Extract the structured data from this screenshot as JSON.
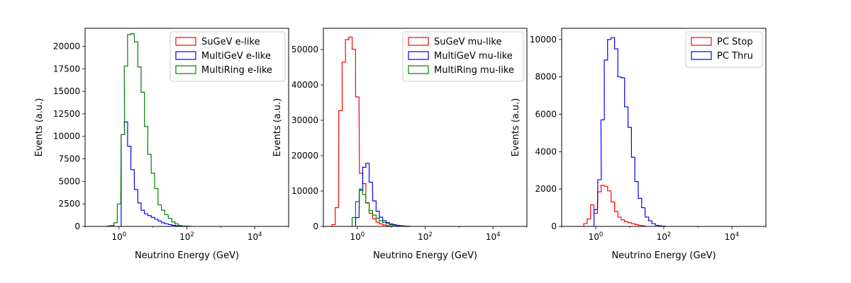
{
  "chart_data": [
    {
      "type": "step-histogram",
      "xlabel": "Neutrino Energy (GeV)",
      "ylabel": "Events (a.u.)",
      "xscale": "log",
      "xlim": [
        0.1,
        100000
      ],
      "ylim": [
        0,
        22000
      ],
      "x_ticks": [
        "10^0",
        "10^2",
        "10^4"
      ],
      "y_ticks": [
        0,
        2500,
        5000,
        7500,
        10000,
        12500,
        15000,
        17500,
        20000
      ],
      "legend_loc": "upper right",
      "series": [
        {
          "name": "SuGeV e-like",
          "color": "#ff0000",
          "points": []
        },
        {
          "name": "MultiGeV e-like",
          "color": "#0000ff",
          "points": [
            [
              1.3,
              10200
            ],
            [
              1.6,
              11600
            ],
            [
              2.0,
              8900
            ],
            [
              2.5,
              6300
            ],
            [
              3.2,
              4100
            ],
            [
              4.0,
              2600
            ],
            [
              5.0,
              1800
            ],
            [
              6.3,
              1400
            ],
            [
              7.9,
              1200
            ],
            [
              10,
              1000
            ],
            [
              12.6,
              800
            ],
            [
              15.8,
              600
            ],
            [
              20,
              400
            ],
            [
              25,
              300
            ],
            [
              32,
              200
            ],
            [
              40,
              120
            ],
            [
              50,
              80
            ],
            [
              63,
              50
            ],
            [
              79,
              30
            ],
            [
              100,
              20
            ],
            [
              126,
              10
            ]
          ]
        },
        {
          "name": "MultiRing e-like",
          "color": "#008000",
          "points": [
            [
              0.5,
              50
            ],
            [
              0.63,
              100
            ],
            [
              0.79,
              400
            ],
            [
              1.0,
              2500
            ],
            [
              1.3,
              10200
            ],
            [
              1.6,
              17800
            ],
            [
              2.0,
              21300
            ],
            [
              2.5,
              21400
            ],
            [
              3.2,
              20500
            ],
            [
              4.0,
              17700
            ],
            [
              5.0,
              14900
            ],
            [
              6.3,
              11100
            ],
            [
              7.9,
              8000
            ],
            [
              10,
              5900
            ],
            [
              12.6,
              4200
            ],
            [
              15.8,
              2400
            ],
            [
              20,
              1800
            ],
            [
              25,
              1300
            ],
            [
              32,
              900
            ],
            [
              40,
              500
            ],
            [
              50,
              300
            ],
            [
              63,
              100
            ],
            [
              79,
              50
            ],
            [
              100,
              20
            ]
          ]
        }
      ]
    },
    {
      "type": "step-histogram",
      "xlabel": "Neutrino Energy (GeV)",
      "ylabel": "Events (a.u.)",
      "xscale": "log",
      "xlim": [
        0.1,
        100000
      ],
      "ylim": [
        0,
        56000
      ],
      "x_ticks": [
        "10^0",
        "10^2",
        "10^4"
      ],
      "y_ticks": [
        0,
        10000,
        20000,
        30000,
        40000,
        50000
      ],
      "legend_loc": "upper right",
      "series": [
        {
          "name": "SuGeV mu-like",
          "color": "#ff0000",
          "points": [
            [
              0.2,
              500
            ],
            [
              0.25,
              5300
            ],
            [
              0.32,
              32700
            ],
            [
              0.4,
              46400
            ],
            [
              0.5,
              52800
            ],
            [
              0.63,
              53500
            ],
            [
              0.79,
              50100
            ],
            [
              1.0,
              36600
            ],
            [
              1.3,
              15000
            ],
            [
              1.6,
              12100
            ],
            [
              2.0,
              6700
            ],
            [
              2.5,
              3700
            ],
            [
              3.2,
              2100
            ],
            [
              4.0,
              1200
            ],
            [
              5.0,
              700
            ],
            [
              6.3,
              400
            ],
            [
              7.9,
              200
            ],
            [
              10,
              100
            ]
          ]
        },
        {
          "name": "MultiGeV mu-like",
          "color": "#0000ff",
          "points": [
            [
              1.0,
              2500
            ],
            [
              1.3,
              10200
            ],
            [
              1.6,
              16700
            ],
            [
              2.0,
              17800
            ],
            [
              2.5,
              12500
            ],
            [
              3.2,
              7200
            ],
            [
              4.0,
              4300
            ],
            [
              5.0,
              2600
            ],
            [
              6.3,
              1600
            ],
            [
              7.9,
              1100
            ],
            [
              10,
              700
            ],
            [
              12.6,
              500
            ],
            [
              15.8,
              300
            ],
            [
              20,
              200
            ],
            [
              25,
              100
            ],
            [
              32,
              50
            ]
          ]
        },
        {
          "name": "MultiRing mu-like",
          "color": "#008000",
          "points": [
            [
              0.79,
              2500
            ],
            [
              1.0,
              7000
            ],
            [
              1.3,
              10600
            ],
            [
              1.6,
              9000
            ],
            [
              2.0,
              6600
            ],
            [
              2.5,
              4500
            ],
            [
              3.2,
              3200
            ],
            [
              4.0,
              2300
            ],
            [
              5.0,
              1600
            ],
            [
              6.3,
              1100
            ],
            [
              7.9,
              800
            ],
            [
              10,
              500
            ],
            [
              12.6,
              300
            ],
            [
              15.8,
              150
            ],
            [
              20,
              80
            ],
            [
              25,
              30
            ]
          ]
        }
      ]
    },
    {
      "type": "step-histogram",
      "xlabel": "Neutrino Energy (GeV)",
      "ylabel": "Events (a.u.)",
      "xscale": "log",
      "xlim": [
        0.1,
        100000
      ],
      "ylim": [
        0,
        10600
      ],
      "x_ticks": [
        "10^0",
        "10^2",
        "10^4"
      ],
      "y_ticks": [
        0,
        2000,
        4000,
        6000,
        8000,
        10000
      ],
      "legend_loc": "upper right",
      "series": [
        {
          "name": "PC Stop",
          "color": "#ff0000",
          "points": [
            [
              0.5,
              150
            ],
            [
              0.63,
              400
            ],
            [
              0.79,
              1150
            ],
            [
              1.0,
              700
            ],
            [
              1.3,
              1850
            ],
            [
              1.6,
              2200
            ],
            [
              2.0,
              2150
            ],
            [
              2.5,
              1900
            ],
            [
              3.2,
              1300
            ],
            [
              4.0,
              800
            ],
            [
              5.0,
              500
            ],
            [
              6.3,
              350
            ],
            [
              7.9,
              250
            ],
            [
              10,
              200
            ],
            [
              12.6,
              150
            ],
            [
              15.8,
              100
            ],
            [
              20,
              60
            ],
            [
              25,
              30
            ]
          ]
        },
        {
          "name": "PC Thru",
          "color": "#0000ff",
          "points": [
            [
              1.0,
              900
            ],
            [
              1.3,
              2500
            ],
            [
              1.6,
              5700
            ],
            [
              2.0,
              8900
            ],
            [
              2.5,
              10000
            ],
            [
              3.2,
              10100
            ],
            [
              4.0,
              9500
            ],
            [
              5.0,
              8000
            ],
            [
              6.3,
              7950
            ],
            [
              7.9,
              6400
            ],
            [
              10,
              5300
            ],
            [
              12.6,
              3700
            ],
            [
              15.8,
              2400
            ],
            [
              20,
              1500
            ],
            [
              25,
              1000
            ],
            [
              32,
              500
            ],
            [
              40,
              300
            ],
            [
              50,
              150
            ],
            [
              63,
              60
            ],
            [
              79,
              30
            ],
            [
              100,
              10
            ]
          ]
        }
      ]
    }
  ]
}
